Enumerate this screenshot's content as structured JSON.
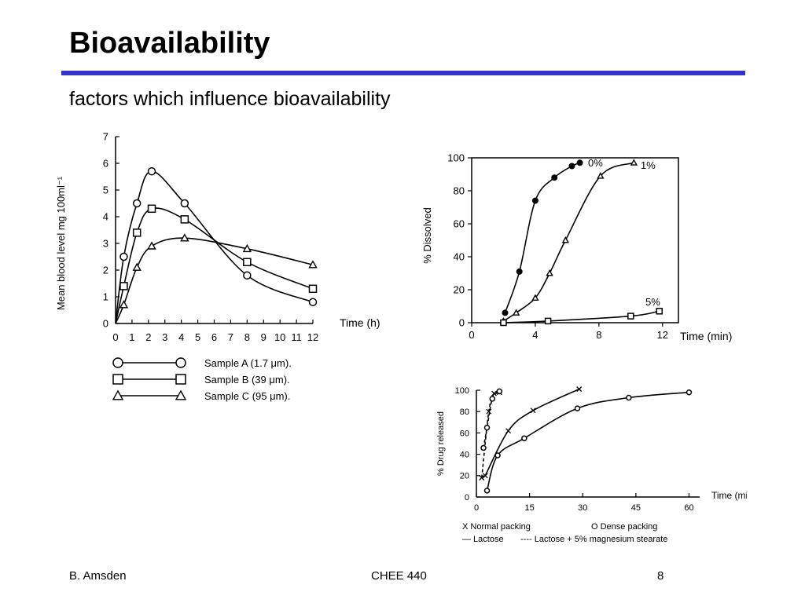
{
  "slide": {
    "title": "Bioavailability",
    "subtitle": "factors which influence bioavailability",
    "accent_color": "#3333cc"
  },
  "footer": {
    "left": "B. Amsden",
    "center": "CHEE 440",
    "right": "8"
  },
  "chart_data": [
    {
      "type": "line",
      "ylabel": "Mean blood level mg 100ml⁻¹",
      "xlabel": "Time (h)",
      "x_ticks": [
        0,
        1,
        2,
        3,
        4,
        5,
        6,
        7,
        8,
        9,
        10,
        11,
        12
      ],
      "y_ticks": [
        0,
        1,
        2,
        3,
        4,
        5,
        6,
        7
      ],
      "xlim": [
        0,
        12
      ],
      "ylim": [
        0,
        7
      ],
      "grid": false,
      "legend_position": "below",
      "series": [
        {
          "name": "Sample   A (1.7 μm).",
          "marker": "circle",
          "points": [
            [
              0.5,
              2.5
            ],
            [
              1.3,
              4.5
            ],
            [
              2.2,
              5.7
            ],
            [
              4.2,
              4.5
            ],
            [
              8,
              1.8
            ],
            [
              12,
              0.8
            ]
          ]
        },
        {
          "name": "Sample   B (39 μm).",
          "marker": "square",
          "points": [
            [
              0.5,
              1.4
            ],
            [
              1.3,
              3.4
            ],
            [
              2.2,
              4.3
            ],
            [
              4.2,
              3.9
            ],
            [
              8,
              2.3
            ],
            [
              12,
              1.3
            ]
          ]
        },
        {
          "name": "Sample   C (95 μm).",
          "marker": "triangle",
          "points": [
            [
              0.5,
              0.7
            ],
            [
              1.3,
              2.1
            ],
            [
              2.2,
              2.9
            ],
            [
              4.2,
              3.2
            ],
            [
              8,
              2.8
            ],
            [
              12,
              2.2
            ]
          ]
        }
      ]
    },
    {
      "type": "line",
      "ylabel": "% Dissolved",
      "xlabel": "Time (min)",
      "x_ticks": [
        0,
        4,
        8,
        12
      ],
      "y_ticks": [
        0,
        20,
        40,
        60,
        80,
        100
      ],
      "xlim": [
        0,
        13
      ],
      "ylim": [
        0,
        100
      ],
      "grid": false,
      "series": [
        {
          "name": "0%",
          "marker": "filled-circle",
          "points": [
            [
              2.1,
              6
            ],
            [
              3,
              31
            ],
            [
              4,
              74
            ],
            [
              5.2,
              88
            ],
            [
              6.3,
              95
            ],
            [
              6.8,
              97
            ]
          ]
        },
        {
          "name": "1%",
          "marker": "triangle",
          "points": [
            [
              2,
              1
            ],
            [
              2.8,
              6
            ],
            [
              4,
              15
            ],
            [
              4.9,
              30
            ],
            [
              5.9,
              50
            ],
            [
              8.1,
              89
            ],
            [
              10.2,
              97
            ]
          ]
        },
        {
          "name": "5%",
          "marker": "square",
          "points": [
            [
              2,
              0
            ],
            [
              4.8,
              1
            ],
            [
              10,
              4
            ],
            [
              11.8,
              7
            ]
          ]
        }
      ]
    },
    {
      "type": "line",
      "ylabel": "% Drug released",
      "xlabel": "Time (min)",
      "x_ticks": [
        0,
        15,
        30,
        45,
        60
      ],
      "y_ticks": [
        0,
        20,
        40,
        60,
        80,
        100
      ],
      "xlim": [
        0,
        63
      ],
      "ylim": [
        0,
        100
      ],
      "grid": false,
      "legend_position": "below",
      "legend_lines": [
        {
          "symbol": "X",
          "text": "Normal packing"
        },
        {
          "symbol": "O",
          "text": "Dense packing"
        },
        {
          "symbol": "—",
          "text": "Lactose"
        },
        {
          "symbol": "----",
          "text": "Lactose + 5% magnesium stearate"
        }
      ],
      "series": [
        {
          "name": "Normal packing, Lactose",
          "marker": "x",
          "style": "solid",
          "points": [
            [
              2.5,
              20
            ],
            [
              9,
              62
            ],
            [
              16,
              81
            ],
            [
              29,
              101
            ]
          ]
        },
        {
          "name": "Dense packing, Lactose",
          "marker": "circle",
          "style": "solid",
          "points": [
            [
              3,
              6
            ],
            [
              6,
              39
            ],
            [
              13.5,
              55
            ],
            [
              28.5,
              83
            ],
            [
              43,
              93
            ],
            [
              60,
              98
            ]
          ]
        },
        {
          "name": "Normal packing, Lactose + 5% magnesium stearate",
          "marker": "x",
          "style": "dashed",
          "points": [
            [
              1.5,
              18
            ],
            [
              3.5,
              80
            ],
            [
              5,
              97
            ],
            [
              6.5,
              98
            ]
          ]
        },
        {
          "name": "Dense packing, Lactose + 5% magnesium stearate",
          "marker": "circle",
          "style": "dashed",
          "points": [
            [
              2,
              46
            ],
            [
              3,
              65
            ],
            [
              4.5,
              92
            ],
            [
              6.5,
              99
            ]
          ]
        }
      ]
    }
  ]
}
